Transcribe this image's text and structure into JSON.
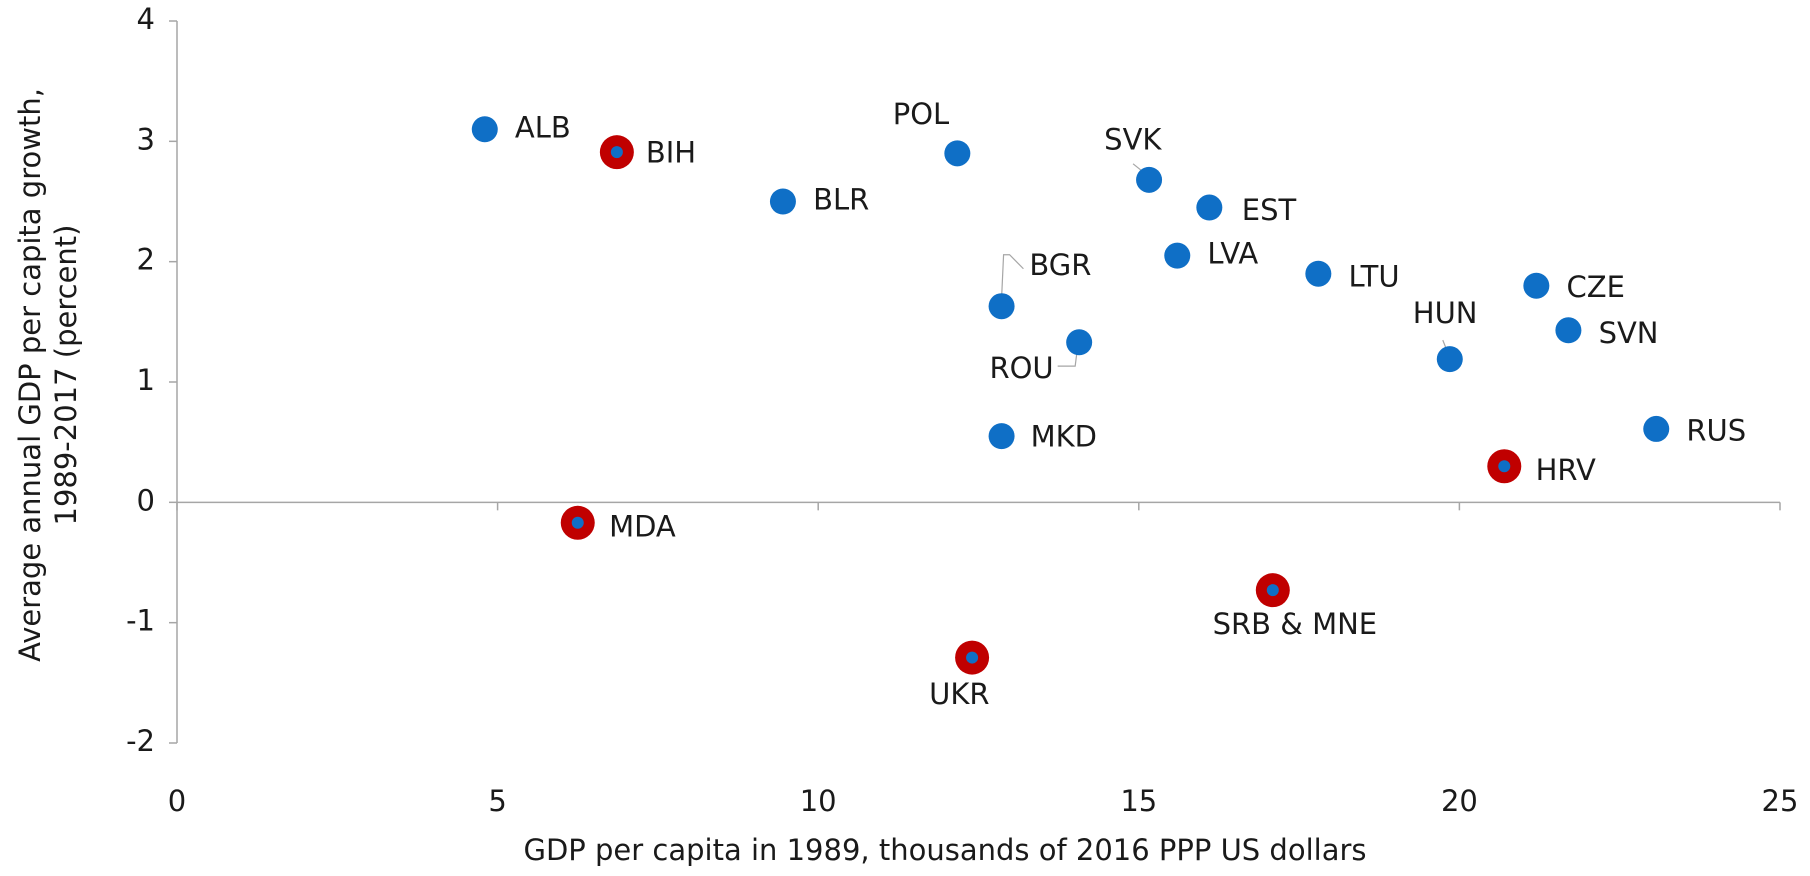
{
  "chart_data": {
    "type": "scatter",
    "x_label": "GDP per capita in 1989, thousands of 2016 PPP US dollars",
    "y_label": [
      "Average annual  GDP per capita growth,",
      "1989-2017 (percent)"
    ],
    "xlim": [
      0,
      25
    ],
    "xticks": [
      0,
      5,
      10,
      15,
      20,
      25
    ],
    "ylim": [
      -2,
      4
    ],
    "yticks": [
      -2,
      -1,
      0,
      1,
      2,
      3,
      4
    ],
    "grid": false,
    "series": [
      {
        "color": "#0f6fc6",
        "labels": [
          "ALB",
          "BLR",
          "POL",
          "SVK",
          "EST",
          "LVA",
          "BGR",
          "ROU",
          "LTU",
          "CZE",
          "SVN",
          "HUN",
          "MKD",
          "RUS"
        ],
        "x": [
          4.8,
          9.45,
          12.17,
          15.16,
          16.1,
          15.6,
          12.86,
          14.07,
          17.8,
          21.2,
          21.7,
          19.85,
          12.86,
          23.07
        ],
        "values": [
          3.1,
          2.5,
          2.9,
          2.68,
          2.45,
          2.05,
          1.63,
          1.33,
          1.9,
          1.8,
          1.43,
          1.19,
          0.55,
          0.61
        ]
      },
      {
        "color": "#c00000",
        "inner_color": "#0f6fc6",
        "labels": [
          "BIH",
          "HRV",
          "MDA",
          "SRB & MNE",
          "UKR"
        ],
        "x": [
          6.86,
          20.7,
          6.25,
          17.09,
          12.4
        ],
        "values": [
          2.91,
          0.3,
          -0.17,
          -0.73,
          -1.29
        ]
      }
    ]
  }
}
